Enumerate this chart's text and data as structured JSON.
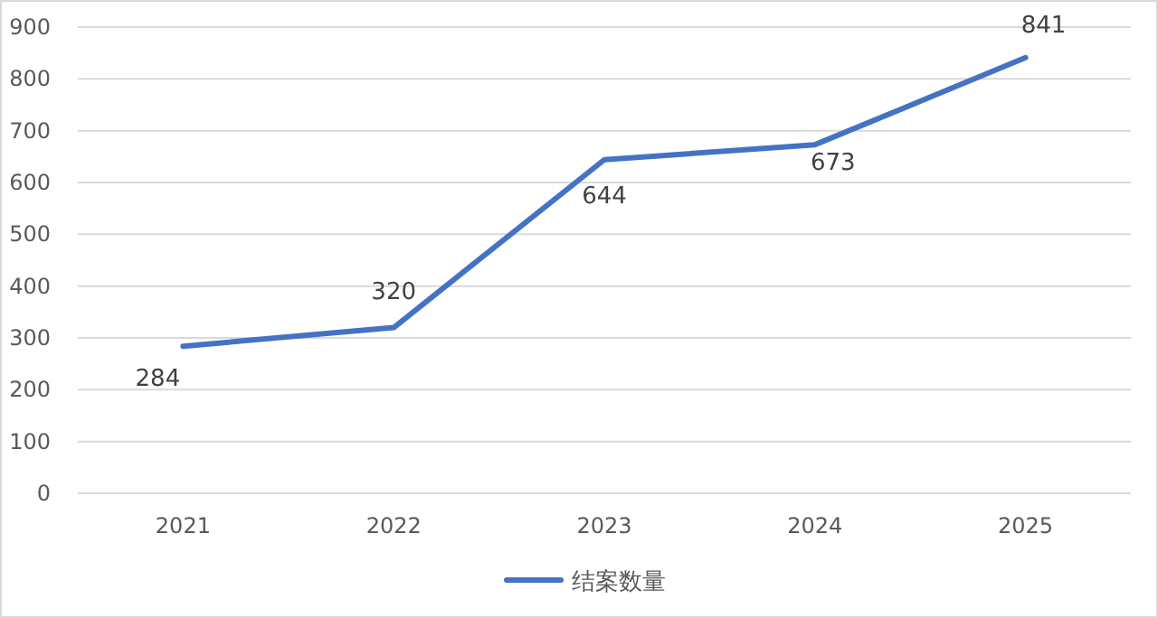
{
  "chart_data": {
    "type": "line",
    "categories": [
      "2021",
      "2022",
      "2023",
      "2024",
      "2025"
    ],
    "series": [
      {
        "name": "结案数量",
        "color": "#4472c4",
        "values": [
          284,
          320,
          644,
          673,
          841
        ]
      }
    ],
    "ylim": [
      0,
      900
    ],
    "yticks": [
      0,
      100,
      200,
      300,
      400,
      500,
      600,
      700,
      800,
      900
    ],
    "grid": "y",
    "legend": "bottom",
    "data_labels": true,
    "marker": "none",
    "line_style": "solid"
  }
}
